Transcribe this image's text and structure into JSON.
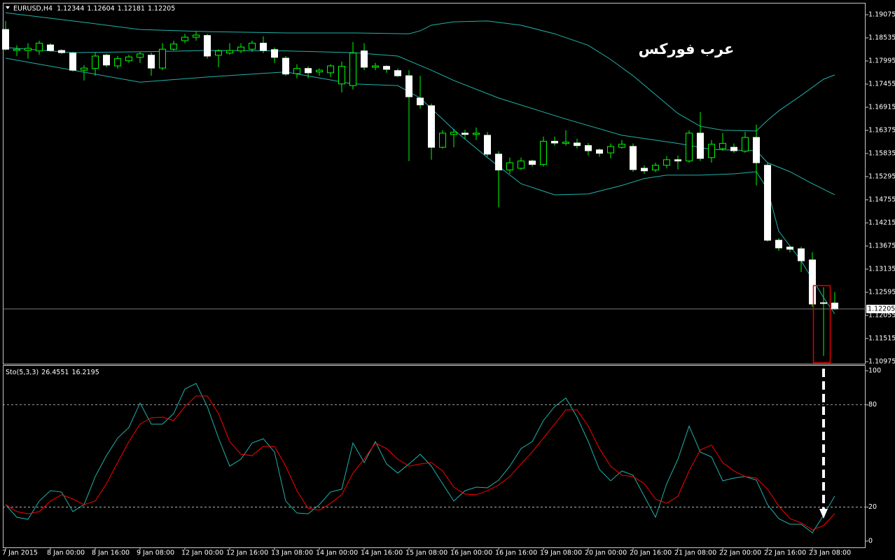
{
  "chart_data": [
    {
      "type": "candlestick",
      "title": "EURUSD,H4",
      "watermark": "عرب فوركس",
      "categories": [
        "7 Jan 2015",
        null,
        null,
        null,
        "8 Jan 00:00",
        null,
        null,
        null,
        "8 Jan 16:00",
        null,
        null,
        null,
        "9 Jan 08:00",
        null,
        null,
        null,
        "12 Jan 00:00",
        null,
        null,
        null,
        "12 Jan 16:00",
        null,
        null,
        null,
        "13 Jan 08:00",
        null,
        null,
        null,
        "14 Jan 00:00",
        null,
        null,
        null,
        "14 Jan 16:00",
        null,
        null,
        null,
        "15 Jan 08:00",
        null,
        null,
        null,
        "16 Jan 00:00",
        null,
        null,
        null,
        "16 Jan 16:00",
        null,
        null,
        null,
        "19 Jan 08:00",
        null,
        null,
        null,
        "20 Jan 00:00",
        null,
        null,
        null,
        "20 Jan 16:00",
        null,
        null,
        null,
        "21 Jan 08:00",
        null,
        null,
        null,
        "22 Jan 00:00",
        null,
        null,
        null,
        "22 Jan 16:00",
        null,
        null,
        null,
        "23 Jan 08:00",
        null,
        null
      ],
      "open": [
        1.1873,
        1.1824,
        1.1824,
        1.1823,
        1.1837,
        1.1824,
        1.1818,
        1.1778,
        1.1782,
        1.1813,
        1.1788,
        1.18,
        1.1808,
        1.1813,
        1.1783,
        1.1827,
        1.1847,
        1.1855,
        1.1859,
        1.1813,
        1.1818,
        1.1823,
        1.1827,
        1.1841,
        1.1826,
        1.1806,
        1.177,
        1.1782,
        1.1774,
        1.1772,
        1.1746,
        1.1742,
        1.1823,
        1.1785,
        1.1787,
        1.1777,
        1.1765,
        1.1713,
        1.1695,
        1.1598,
        1.1628,
        1.1631,
        1.1628,
        1.1626,
        1.1582,
        1.1545,
        1.1549,
        1.1566,
        1.1558,
        1.1612,
        1.1607,
        1.1608,
        1.1602,
        1.1592,
        1.1585,
        1.1598,
        1.16,
        1.1549,
        1.1545,
        1.1556,
        1.1569,
        1.1566,
        1.1631,
        1.1574,
        1.1595,
        1.1598,
        1.1589,
        1.1621,
        1.1556,
        1.1381,
        1.1365,
        1.1361,
        1.1335,
        1.1235,
        1.12344
      ],
      "high": [
        1.1893,
        1.1836,
        1.1841,
        1.1847,
        1.1841,
        1.1827,
        1.1821,
        1.179,
        1.1819,
        1.1816,
        1.1811,
        1.1814,
        1.1821,
        1.1819,
        1.1841,
        1.1847,
        1.1863,
        1.1868,
        1.1863,
        1.1827,
        1.1841,
        1.1841,
        1.1847,
        1.1857,
        1.1831,
        1.1811,
        1.1792,
        1.1787,
        1.1782,
        1.1792,
        1.1798,
        1.1844,
        1.1841,
        1.1795,
        1.179,
        1.1782,
        1.1778,
        1.1765,
        1.17,
        1.1638,
        1.1641,
        1.1639,
        1.1644,
        1.1634,
        1.1589,
        1.1574,
        1.1574,
        1.1569,
        1.1623,
        1.1623,
        1.1638,
        1.1618,
        1.1608,
        1.1595,
        1.1607,
        1.1615,
        1.1607,
        1.1556,
        1.1562,
        1.1577,
        1.1579,
        1.1638,
        1.168,
        1.1615,
        1.1631,
        1.1607,
        1.1634,
        1.1651,
        1.1562,
        1.1386,
        1.1369,
        1.1366,
        1.1353,
        1.1271,
        1.12604
      ],
      "low": [
        1.1824,
        1.1811,
        1.1805,
        1.1814,
        1.1821,
        1.1816,
        1.1775,
        1.1754,
        1.1765,
        1.1785,
        1.1782,
        1.1795,
        1.1795,
        1.1765,
        1.1778,
        1.1824,
        1.1841,
        1.1847,
        1.1805,
        1.1785,
        1.1814,
        1.1818,
        1.1821,
        1.1818,
        1.1795,
        1.1765,
        1.1759,
        1.1759,
        1.1765,
        1.1762,
        1.1726,
        1.1733,
        1.1778,
        1.1778,
        1.1772,
        1.1762,
        1.1566,
        1.1688,
        1.1569,
        1.1595,
        1.1598,
        1.1618,
        1.1615,
        1.1576,
        1.1458,
        1.1536,
        1.1545,
        1.1553,
        1.1553,
        1.1602,
        1.1602,
        1.1595,
        1.1579,
        1.1576,
        1.1572,
        1.1595,
        1.1541,
        1.1536,
        1.154,
        1.1549,
        1.1546,
        1.1562,
        1.1566,
        1.1562,
        1.159,
        1.1585,
        1.1585,
        1.1509,
        1.1378,
        1.1356,
        1.1353,
        1.1307,
        1.1225,
        1.1111,
        1.12181
      ],
      "close": [
        1.1827,
        1.1827,
        1.1829,
        1.1841,
        1.1824,
        1.1819,
        1.1778,
        1.1783,
        1.1811,
        1.179,
        1.1805,
        1.1809,
        1.1816,
        1.1783,
        1.1827,
        1.1839,
        1.1855,
        1.186,
        1.1811,
        1.1823,
        1.1824,
        1.1832,
        1.1841,
        1.1824,
        1.1808,
        1.1769,
        1.1782,
        1.1772,
        1.1778,
        1.1788,
        1.1787,
        1.1818,
        1.1785,
        1.1788,
        1.178,
        1.1765,
        1.1716,
        1.1697,
        1.1598,
        1.1631,
        1.1633,
        1.1628,
        1.1631,
        1.1582,
        1.1545,
        1.1562,
        1.1566,
        1.1558,
        1.1612,
        1.1608,
        1.161,
        1.1602,
        1.159,
        1.1584,
        1.16,
        1.1605,
        1.1546,
        1.1543,
        1.1556,
        1.1569,
        1.1566,
        1.1631,
        1.1572,
        1.1605,
        1.1607,
        1.159,
        1.1621,
        1.1562,
        1.1381,
        1.1363,
        1.136,
        1.1333,
        1.1232,
        1.1234,
        1.12205
      ],
      "up_color": "#000000",
      "down_color": "#ffffff",
      "wick_color": "#00ff00",
      "bands": [
        {
          "color": "#20b2aa",
          "x": [
            0,
            6,
            12,
            18,
            25,
            31,
            36,
            37,
            38,
            40,
            43,
            46,
            49,
            52,
            54,
            56,
            58,
            60,
            62,
            64,
            67,
            68,
            69,
            71,
            73,
            74
          ],
          "values": [
            1.1912,
            1.1893,
            1.1873,
            1.1868,
            1.1865,
            1.1865,
            1.1863,
            1.187,
            1.1883,
            1.1891,
            1.1893,
            1.1883,
            1.1863,
            1.1836,
            1.1803,
            1.1765,
            1.1721,
            1.1677,
            1.1647,
            1.1638,
            1.1636,
            1.1661,
            1.1683,
            1.1719,
            1.1757,
            1.1767
          ]
        },
        {
          "color": "#20b2aa",
          "x": [
            0,
            6,
            12,
            18,
            25,
            31,
            35,
            38,
            40,
            44,
            50,
            55,
            60,
            63,
            67,
            68,
            70,
            72,
            74
          ],
          "values": [
            1.1831,
            1.1819,
            1.1821,
            1.1824,
            1.1823,
            1.1819,
            1.1811,
            1.1778,
            1.1754,
            1.1713,
            1.1664,
            1.1626,
            1.1607,
            1.1593,
            1.159,
            1.1562,
            1.1541,
            1.1513,
            1.1487
          ]
        },
        {
          "color": "#20b2aa",
          "x": [
            0,
            6,
            12,
            18,
            25,
            31,
            35,
            37,
            40,
            43,
            46,
            49,
            52,
            55,
            57,
            59,
            62,
            65,
            67,
            68,
            69,
            71,
            73,
            74
          ],
          "values": [
            1.1806,
            1.1778,
            1.175,
            1.1762,
            1.1774,
            1.1746,
            1.1742,
            1.1713,
            1.1639,
            1.1574,
            1.1513,
            1.1487,
            1.1489,
            1.1509,
            1.1525,
            1.1533,
            1.1533,
            1.1536,
            1.1541,
            1.15,
            1.1402,
            1.1333,
            1.1247,
            1.1209
          ]
        }
      ],
      "ylim": [
        1.10926,
        1.19337
      ],
      "yticks": [
        1.19075,
        1.18535,
        1.17995,
        1.17455,
        1.16915,
        1.16375,
        1.15835,
        1.15295,
        1.14755,
        1.14215,
        1.13675,
        1.13135,
        1.12595,
        1.12055,
        1.11515,
        1.10975
      ]
    },
    {
      "type": "line",
      "title": "Sto(5,3,3)",
      "series": [
        {
          "color": "#20b2aa",
          "values": [
            21.4,
            14.0,
            12.8,
            23.5,
            29.6,
            28.8,
            17.3,
            21.4,
            37.9,
            50.2,
            60.5,
            66.7,
            81.1,
            68.7,
            68.7,
            74.9,
            89.3,
            92.6,
            79.0,
            60.5,
            44.0,
            48.1,
            57.6,
            60.1,
            52.3,
            23.5,
            16.5,
            16.0,
            21.4,
            28.8,
            30.5,
            57.6,
            46.1,
            58.4,
            45.3,
            39.9,
            45.3,
            51.0,
            44.0,
            33.7,
            23.5,
            29.6,
            31.7,
            31.3,
            35.8,
            44.0,
            54.3,
            58.4,
            70.8,
            79.0,
            84.0,
            72.8,
            58.4,
            42.0,
            35.4,
            41.2,
            38.7,
            26.3,
            14.0,
            33.7,
            48.1,
            67.5,
            52.3,
            49.4,
            35.4,
            37.0,
            37.9,
            35.8,
            21.4,
            13.2,
            9.9,
            9.9,
            4.9,
            15.2,
            26.4551
          ]
        },
        {
          "color": "#ff0000",
          "values": [
            21.4,
            17.3,
            16.0,
            17.3,
            23.5,
            27.2,
            24.7,
            21.4,
            23.5,
            33.7,
            46.1,
            58.4,
            68.7,
            72.4,
            72.8,
            70.8,
            79.0,
            85.2,
            85.2,
            74.9,
            58.4,
            51.0,
            50.2,
            55.6,
            55.6,
            44.0,
            29.6,
            19.3,
            18.1,
            22.2,
            27.2,
            39.9,
            48.1,
            57.6,
            54.3,
            48.1,
            44.0,
            45.3,
            46.1,
            41.2,
            31.7,
            27.6,
            27.2,
            29.6,
            32.9,
            37.9,
            45.3,
            52.3,
            60.5,
            68.7,
            77.0,
            77.0,
            67.5,
            54.3,
            44.0,
            38.7,
            37.9,
            33.7,
            24.7,
            22.2,
            26.3,
            41.2,
            53.5,
            56.4,
            46.1,
            41.2,
            37.9,
            37.0,
            30.5,
            20.6,
            13.2,
            10.7,
            6.6,
            9.1,
            16.2195
          ]
        }
      ],
      "levels": [
        80,
        20
      ],
      "ylim": [
        -3.7,
        102.9
      ],
      "yticks": [
        100,
        80,
        20,
        0
      ]
    }
  ]
}
